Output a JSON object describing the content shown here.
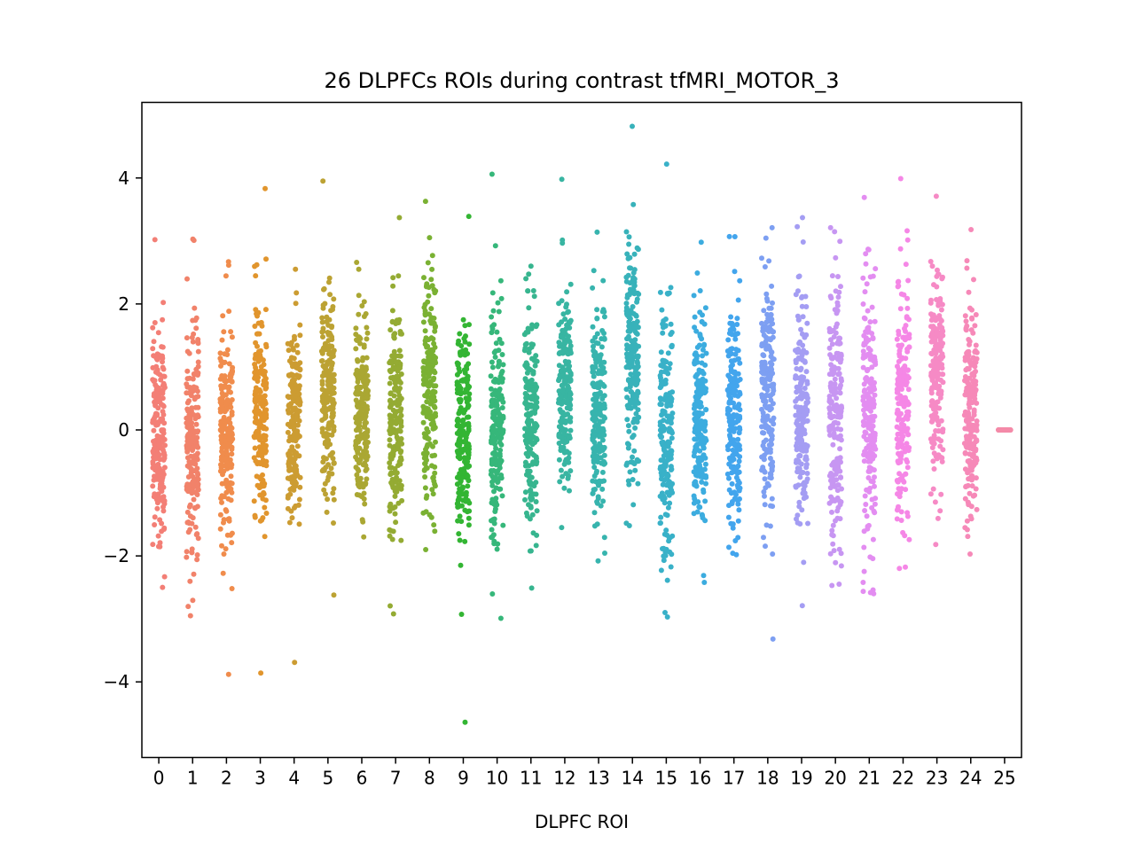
{
  "chart_data": {
    "type": "scatter",
    "subtype": "strip",
    "title": "26 DLPFCs ROIs during contrast tfMRI_MOTOR_3",
    "xlabel": "DLPFC ROI",
    "ylabel": "",
    "categories": [
      "0",
      "1",
      "2",
      "3",
      "4",
      "5",
      "6",
      "7",
      "8",
      "9",
      "10",
      "11",
      "12",
      "13",
      "14",
      "15",
      "16",
      "17",
      "18",
      "19",
      "20",
      "21",
      "22",
      "23",
      "24",
      "25"
    ],
    "ylim": [
      -5.2,
      5.2
    ],
    "yticks": [
      -4,
      -2,
      0,
      2,
      4
    ],
    "ytick_labels": [
      "−4",
      "−2",
      "0",
      "2",
      "4"
    ],
    "grid": false,
    "legend": "none",
    "colors": [
      "#f37f76",
      "#f1826a",
      "#f08c4c",
      "#e1952d",
      "#cc9c32",
      "#bca233",
      "#aaa733",
      "#94ab33",
      "#7ab133",
      "#33b533",
      "#36b77a",
      "#37b58f",
      "#38b5a2",
      "#37b4ae",
      "#38b2ba",
      "#39b1c8",
      "#3cacdf",
      "#43a5ed",
      "#7d9ff2",
      "#a49df3",
      "#c796f2",
      "#e38df1",
      "#f587e6",
      "#f68ac5",
      "#f689b8",
      "#f48aa8"
    ],
    "series": [
      {
        "name": "0",
        "center": -0.1,
        "spread": 0.85,
        "min": -2.5,
        "max": 3.02
      },
      {
        "name": "1",
        "center": -0.1,
        "spread": 0.9,
        "min": -2.95,
        "max": 3.03
      },
      {
        "name": "2",
        "center": -0.1,
        "spread": 0.85,
        "min": -3.88,
        "max": 2.67
      },
      {
        "name": "3",
        "center": 0.2,
        "spread": 0.9,
        "min": -3.86,
        "max": 3.83
      },
      {
        "name": "4",
        "center": 0.1,
        "spread": 0.75,
        "min": -3.69,
        "max": 2.55
      },
      {
        "name": "5",
        "center": 0.6,
        "spread": 0.85,
        "min": -2.62,
        "max": 3.95
      },
      {
        "name": "6",
        "center": 0.3,
        "spread": 0.7,
        "min": -1.7,
        "max": 2.66
      },
      {
        "name": "7",
        "center": 0.2,
        "spread": 0.9,
        "min": -2.92,
        "max": 3.37
      },
      {
        "name": "8",
        "center": 0.8,
        "spread": 0.9,
        "min": -1.9,
        "max": 3.63
      },
      {
        "name": "9",
        "center": -0.1,
        "spread": 0.9,
        "min": -4.64,
        "max": 3.39
      },
      {
        "name": "10",
        "center": 0.1,
        "spread": 0.9,
        "min": -2.99,
        "max": 4.06
      },
      {
        "name": "11",
        "center": 0.2,
        "spread": 0.8,
        "min": -2.51,
        "max": 2.6
      },
      {
        "name": "12",
        "center": 0.7,
        "spread": 0.9,
        "min": -1.55,
        "max": 3.98
      },
      {
        "name": "13",
        "center": 0.3,
        "spread": 0.85,
        "min": -2.08,
        "max": 3.14
      },
      {
        "name": "14",
        "center": 1.2,
        "spread": 0.95,
        "min": -1.52,
        "max": 4.82
      },
      {
        "name": "15",
        "center": -0.1,
        "spread": 0.95,
        "min": -2.97,
        "max": 4.22
      },
      {
        "name": "16",
        "center": 0.3,
        "spread": 0.85,
        "min": -2.42,
        "max": 2.98
      },
      {
        "name": "17",
        "center": 0.2,
        "spread": 0.9,
        "min": -1.98,
        "max": 3.07
      },
      {
        "name": "18",
        "center": 0.6,
        "spread": 0.9,
        "min": -3.32,
        "max": 3.21
      },
      {
        "name": "19",
        "center": 0.4,
        "spread": 0.9,
        "min": -2.79,
        "max": 3.37
      },
      {
        "name": "20",
        "center": 0.2,
        "spread": 1.0,
        "min": -2.47,
        "max": 3.21
      },
      {
        "name": "21",
        "center": 0.3,
        "spread": 1.0,
        "min": -2.6,
        "max": 3.69
      },
      {
        "name": "22",
        "center": 0.4,
        "spread": 1.0,
        "min": -2.2,
        "max": 3.99
      },
      {
        "name": "23",
        "center": 0.9,
        "spread": 0.9,
        "min": -1.82,
        "max": 3.71
      },
      {
        "name": "24",
        "center": 0.3,
        "spread": 0.85,
        "min": -1.97,
        "max": 3.18
      },
      {
        "name": "25",
        "center": 0.0,
        "spread": 0.0,
        "min": 0.0,
        "max": 0.0
      }
    ]
  }
}
